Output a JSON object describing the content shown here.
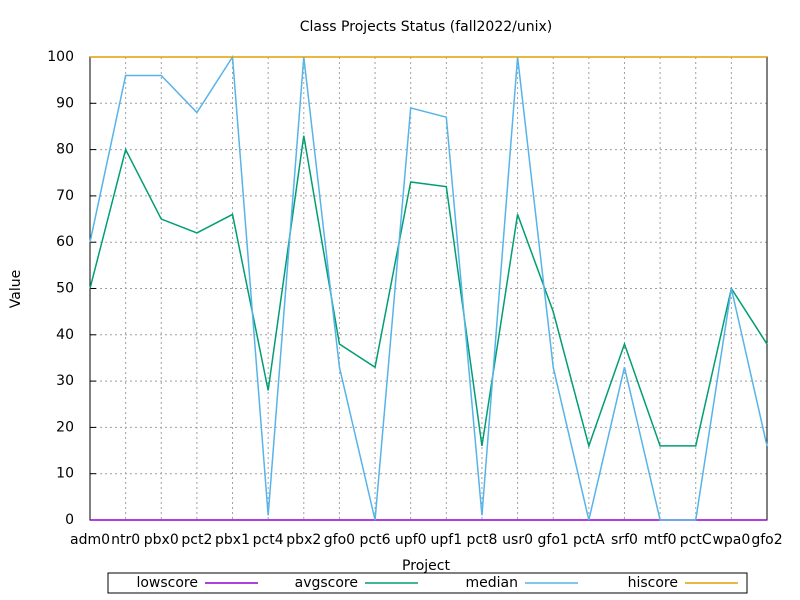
{
  "chart_data": {
    "type": "line",
    "title": "Class Projects Status (fall2022/unix)",
    "x_label": "Project",
    "y_label": "Value",
    "categories": [
      "adm0",
      "ntr0",
      "pbx0",
      "pct2",
      "pbx1",
      "pct4",
      "pbx2",
      "gfo0",
      "pct6",
      "upf0",
      "upf1",
      "pct8",
      "usr0",
      "gfo1",
      "pctA",
      "srf0",
      "mtf0",
      "pctC",
      "wpa0",
      "gfo2"
    ],
    "series": [
      {
        "name": "lowscore",
        "color": "#9400d3",
        "values": [
          0,
          0,
          0,
          0,
          0,
          0,
          0,
          0,
          0,
          0,
          0,
          0,
          0,
          0,
          0,
          0,
          0,
          0,
          0,
          0
        ]
      },
      {
        "name": "avgscore",
        "color": "#009e73",
        "values": [
          50,
          80,
          65,
          62,
          66,
          28,
          83,
          38,
          33,
          73,
          72,
          16,
          66,
          45,
          16,
          38,
          16,
          16,
          50,
          38
        ]
      },
      {
        "name": "median",
        "color": "#56b4e9",
        "values": [
          60,
          96,
          96,
          88,
          100,
          1,
          100,
          33,
          0,
          89,
          87,
          1,
          100,
          33,
          0,
          33,
          0,
          0,
          50,
          16
        ]
      },
      {
        "name": "hiscore",
        "color": "#e69f00",
        "values": [
          100,
          100,
          100,
          100,
          100,
          100,
          100,
          100,
          100,
          100,
          100,
          100,
          100,
          100,
          100,
          100,
          100,
          100,
          100,
          100
        ]
      }
    ],
    "ylim": [
      0,
      100
    ],
    "yticks": [
      0,
      10,
      20,
      30,
      40,
      50,
      60,
      70,
      80,
      90,
      100
    ],
    "grid": true,
    "legend": "bottom"
  }
}
